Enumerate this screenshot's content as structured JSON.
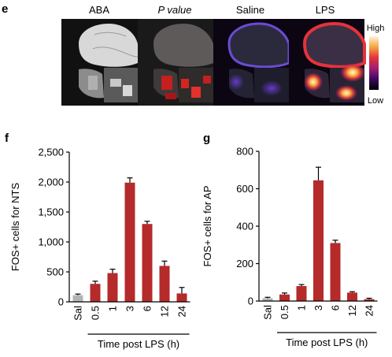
{
  "panel_e": {
    "label": "e",
    "columns": [
      "ABA",
      "P value",
      "Saline",
      "LPS"
    ],
    "colorbar": {
      "high": "High",
      "low": "Low",
      "colors": [
        "#fff3d9",
        "#f6a442",
        "#e5333a",
        "#a31d74",
        "#3d0a61",
        "#000000"
      ]
    }
  },
  "chart_data": [
    {
      "panel": "f",
      "type": "bar",
      "categories": [
        "Sal",
        "0.5",
        "1",
        "3",
        "6",
        "12",
        "24"
      ],
      "values": [
        110,
        300,
        480,
        1990,
        1300,
        600,
        140
      ],
      "errors": [
        20,
        45,
        65,
        80,
        45,
        80,
        100
      ],
      "colors": [
        "#b4b4b4",
        "#b52a2a",
        "#b52a2a",
        "#b52a2a",
        "#b52a2a",
        "#b52a2a",
        "#b52a2a"
      ],
      "ylabel": "FOS+ cells for NTS",
      "xlabel": "Time post LPS (h)",
      "ylim": [
        0,
        2500
      ],
      "yticks": [
        0,
        500,
        1000,
        1500,
        2000,
        2500
      ],
      "ytick_labels": [
        "0",
        "500",
        "1,000",
        "1,500",
        "2,000",
        "2,500"
      ]
    },
    {
      "panel": "g",
      "type": "bar",
      "categories": [
        "Sal",
        "0.5",
        "1",
        "3",
        "6",
        "12",
        "24"
      ],
      "values": [
        15,
        35,
        80,
        645,
        310,
        45,
        10
      ],
      "errors": [
        5,
        8,
        8,
        70,
        15,
        5,
        5
      ],
      "colors": [
        "#b4b4b4",
        "#b52a2a",
        "#b52a2a",
        "#b52a2a",
        "#b52a2a",
        "#b52a2a",
        "#b52a2a"
      ],
      "ylabel": "FOS+ cells for AP",
      "xlabel": "Time post LPS (h)",
      "ylim": [
        0,
        800
      ],
      "yticks": [
        0,
        200,
        400,
        600,
        800
      ],
      "ytick_labels": [
        "0",
        "200",
        "400",
        "600",
        "800"
      ]
    }
  ]
}
